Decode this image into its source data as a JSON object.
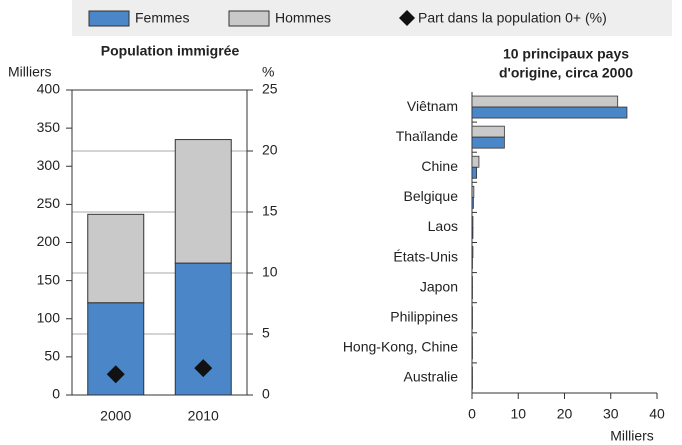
{
  "chart_data": [
    {
      "type": "stacked-bar",
      "title": "Population immigrée",
      "ylabel": "Milliers",
      "y2label": "%",
      "categories": [
        "2000",
        "2010"
      ],
      "series": [
        {
          "name": "Femmes",
          "color": "#4a86c8",
          "values": [
            121,
            173
          ]
        },
        {
          "name": "Hommes",
          "color": "#c9c9c9",
          "values": [
            116,
            162
          ]
        },
        {
          "name": "Part dans la population 0+ (%)",
          "color": "#111111",
          "axis": "y2",
          "marker": "diamond",
          "values": [
            1.7,
            2.2
          ]
        }
      ],
      "ylim": [
        0,
        400
      ],
      "yticks": [
        0,
        50,
        100,
        150,
        200,
        250,
        300,
        350,
        400
      ],
      "y2lim": [
        0,
        25
      ],
      "y2ticks": [
        0,
        5,
        10,
        15,
        20,
        25
      ],
      "grid": "y2"
    },
    {
      "type": "hbar",
      "title": [
        "10 principaux pays",
        "d'origine, circa 2000"
      ],
      "xlabel": "Milliers",
      "categories": [
        "Viêtnam",
        "Thaïlande",
        "Chine",
        "Belgique",
        "Laos",
        "États-Unis",
        "Japon",
        "Philippines",
        "Hong-Kong, Chine",
        "Australie"
      ],
      "series": [
        {
          "color": "#c9c9c9",
          "values": [
            31.5,
            7,
            1.5,
            0.4,
            0.2,
            0.2,
            0.1,
            0.1,
            0.1,
            0.1
          ]
        },
        {
          "color": "#4a86c8",
          "values": [
            33.5,
            7,
            1,
            0.3,
            0.2,
            0.1,
            0.1,
            0.1,
            0.1,
            0.1
          ]
        }
      ],
      "xlim": [
        0,
        40
      ],
      "xticks": [
        0,
        10,
        20,
        30,
        40
      ]
    }
  ]
}
